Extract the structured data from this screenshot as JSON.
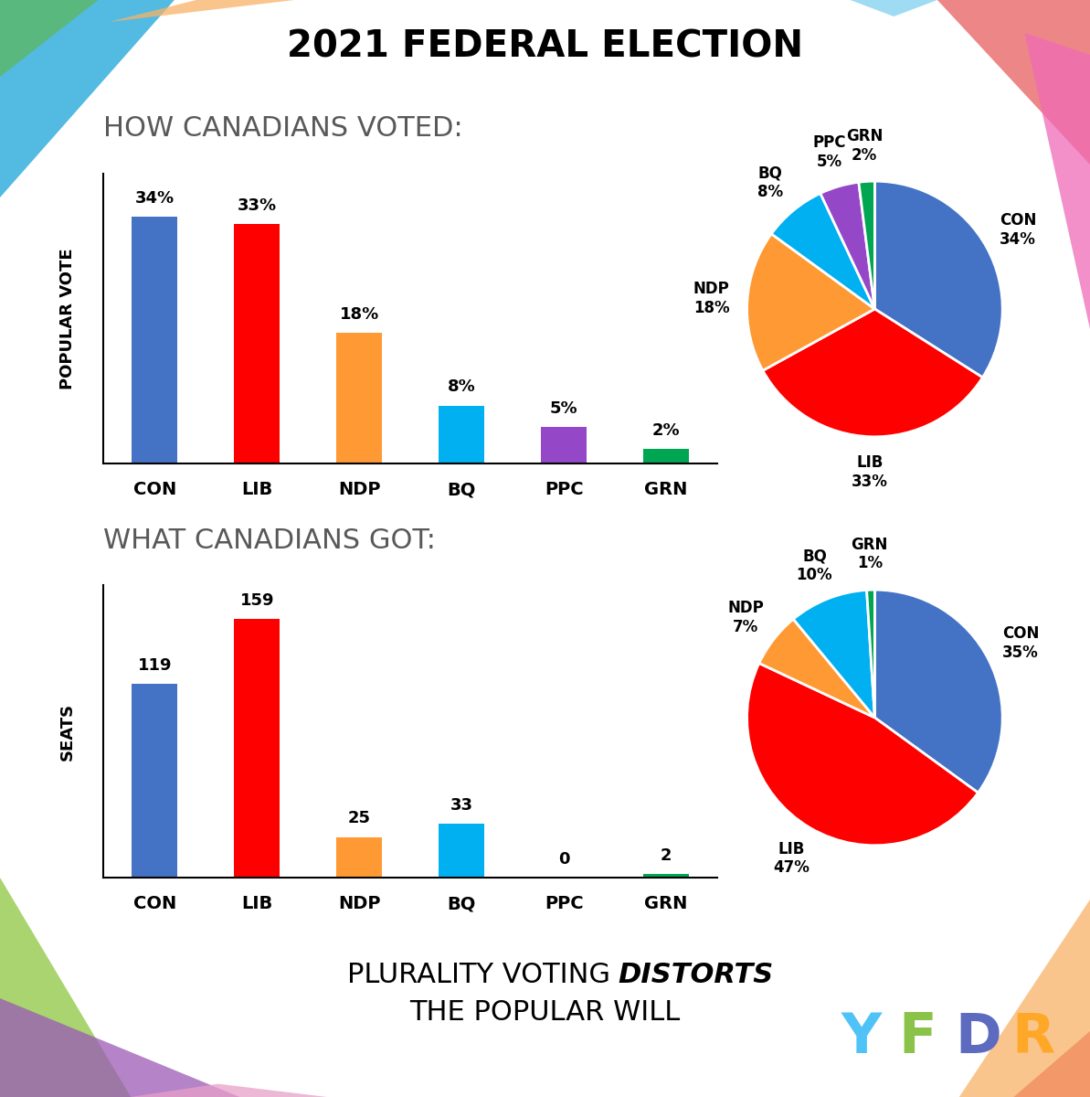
{
  "title": "2021 FEDERAL ELECTION",
  "headings": [
    "HOW CANADIANS VOTED:",
    "WHAT CANADIANS GOT:"
  ],
  "footer": [
    "PLURALITY VOTING",
    "DISTORTS",
    "THE POPULAR WILL"
  ],
  "logo": "YFDR",
  "chart_data": [
    {
      "type": "bar",
      "y_label": "POPULAR VOTE",
      "categories": [
        "CON",
        "LIB",
        "NDP",
        "BQ",
        "PPC",
        "GRN"
      ],
      "values": [
        34,
        33,
        18,
        8,
        5,
        2
      ],
      "value_labels": [
        "34%",
        "33%",
        "18%",
        "8%",
        "5%",
        "2%"
      ],
      "colors": [
        "#4472c4",
        "#ff0000",
        "#ff9933",
        "#00b0f0",
        "#9448c8",
        "#00a651"
      ],
      "ylim": [
        0,
        40
      ],
      "yticks": [],
      "data_labels": true,
      "tick_labels": "x"
    },
    {
      "type": "pie",
      "categories": [
        "CON",
        "LIB",
        "NDP",
        "BQ",
        "PPC",
        "GRN"
      ],
      "values": [
        34,
        33,
        18,
        8,
        5,
        2
      ],
      "value_labels": [
        "34%",
        "33%",
        "18%",
        "8%",
        "5%",
        "2%"
      ],
      "colors": [
        "#4472c4",
        "#ff0000",
        "#ff9933",
        "#00b0f0",
        "#9448c8",
        "#00a651"
      ]
    },
    {
      "type": "bar",
      "y_label": "SEATS",
      "categories": [
        "CON",
        "LIB",
        "NDP",
        "BQ",
        "PPC",
        "GRN"
      ],
      "values": [
        119,
        159,
        25,
        33,
        0,
        2
      ],
      "colors": [
        "#4472c4",
        "#ff0000",
        "#ff9933",
        "#00b0f0",
        "#9448c8",
        "#00a651"
      ],
      "ylim": [
        0,
        180
      ],
      "yticks": [],
      "data_labels": true,
      "tick_labels": "x"
    },
    {
      "type": "pie",
      "categories": [
        "CON",
        "LIB",
        "NDP",
        "BQ",
        "GRN"
      ],
      "values": [
        35,
        47,
        7,
        10,
        1
      ],
      "value_labels": [
        "35%",
        "47%",
        "7%",
        "10%",
        "1%"
      ],
      "colors": [
        "#4472c4",
        "#ff0000",
        "#ff9933",
        "#00b0f0",
        "#00a651"
      ]
    }
  ]
}
